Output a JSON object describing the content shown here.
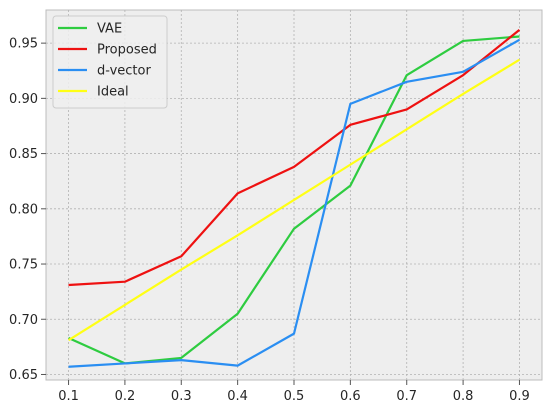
{
  "chart_data": {
    "type": "line",
    "title": "",
    "xlabel": "",
    "ylabel": "",
    "x": [
      0.1,
      0.2,
      0.3,
      0.4,
      0.5,
      0.6,
      0.7,
      0.8,
      0.9
    ],
    "xticks": [
      "0.1",
      "0.2",
      "0.3",
      "0.4",
      "0.5",
      "0.6",
      "0.7",
      "0.8",
      "0.9"
    ],
    "yticks": [
      "0.65",
      "0.70",
      "0.75",
      "0.80",
      "0.85",
      "0.90",
      "0.95"
    ],
    "xlim": [
      0.06,
      0.94
    ],
    "ylim": [
      0.645,
      0.98
    ],
    "grid": true,
    "grid_style": "dotted",
    "background": "#eeeeee",
    "legend_position": "top-left",
    "series": [
      {
        "name": "VAE",
        "color": "#2ecc40",
        "values": [
          0.683,
          0.66,
          0.665,
          0.705,
          0.782,
          0.821,
          0.921,
          0.952,
          0.956
        ]
      },
      {
        "name": "Proposed",
        "color": "#ee1111",
        "values": [
          0.731,
          0.734,
          0.757,
          0.814,
          0.838,
          0.876,
          0.89,
          0.921,
          0.962
        ]
      },
      {
        "name": "d-vector",
        "color": "#2a8ef2",
        "values": [
          0.657,
          0.66,
          0.663,
          0.658,
          0.687,
          0.895,
          0.915,
          0.924,
          0.953
        ]
      },
      {
        "name": "Ideal",
        "color": "#ffff14",
        "values": [
          0.681,
          0.713,
          0.745,
          0.776,
          0.808,
          0.84,
          0.872,
          0.904,
          0.935
        ]
      }
    ]
  }
}
